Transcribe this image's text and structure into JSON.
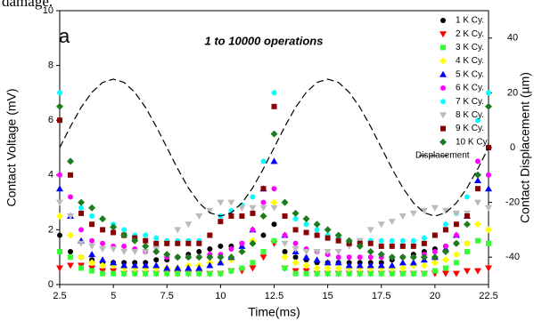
{
  "chart_data": {
    "type": "scatter",
    "header_text": "damage.",
    "panel_label": "a",
    "annotation": "1 to 10000 operations",
    "xlabel": "Time(ms)",
    "ylabel": "Contact Voltage (mV)",
    "y2label": "Contact Displacement (µm)",
    "xlim": [
      2.5,
      22.5
    ],
    "xticks": [
      2.5,
      5.0,
      7.5,
      10.0,
      12.5,
      15.0,
      17.5,
      20.0,
      22.5
    ],
    "ylim": [
      0,
      10
    ],
    "yticks": [
      0,
      2,
      4,
      6,
      8,
      10
    ],
    "y2lim": [
      -50,
      50
    ],
    "y2ticks": [
      -40,
      -20,
      0,
      20,
      40
    ],
    "x": [
      2.5,
      3,
      3.5,
      4,
      4.5,
      5,
      5.5,
      6,
      6.5,
      7,
      7.5,
      8,
      8.5,
      9,
      9.5,
      10,
      10.5,
      11,
      11.5,
      12,
      12.5,
      13,
      13.5,
      14,
      14.5,
      15,
      15.5,
      16,
      16.5,
      17,
      17.5,
      18,
      18.5,
      19,
      19.5,
      20,
      20.5,
      21,
      21.5,
      22,
      22.5
    ],
    "series": [
      {
        "name": "1 K Cy.",
        "color": "#000000",
        "marker": "circle",
        "values": [
          1.8,
          1.2,
          1.0,
          0.9,
          0.8,
          0.8,
          0.8,
          0.8,
          0.8,
          0.9,
          0.9,
          1.0,
          1.1,
          1.2,
          1.3,
          1.4,
          1.4,
          1.5,
          1.5,
          1.8,
          2.2,
          1.2,
          1.0,
          0.9,
          0.8,
          0.8,
          0.8,
          0.8,
          0.8,
          0.8,
          0.8,
          0.9,
          1.0,
          1.1,
          1.2,
          1.3,
          1.4,
          1.5,
          1.5,
          1.6,
          1.5
        ]
      },
      {
        "name": "2 K Cy.",
        "color": "#ff0000",
        "marker": "triangle-down",
        "values": [
          0.6,
          0.7,
          0.7,
          0.6,
          0.5,
          0.5,
          0.4,
          0.4,
          0.4,
          0.4,
          0.4,
          0.4,
          0.4,
          0.4,
          0.4,
          0.4,
          0.5,
          0.5,
          0.6,
          1.0,
          1.5,
          0.6,
          0.5,
          0.5,
          0.4,
          0.4,
          0.4,
          0.4,
          0.4,
          0.4,
          0.4,
          0.4,
          0.4,
          0.4,
          0.4,
          0.4,
          0.4,
          0.4,
          0.5,
          0.5,
          0.6
        ]
      },
      {
        "name": "3 K Cy.",
        "color": "#33ff33",
        "marker": "square",
        "values": [
          1.2,
          1.0,
          0.6,
          0.5,
          0.4,
          0.4,
          0.4,
          0.4,
          0.4,
          0.4,
          0.4,
          0.4,
          0.4,
          0.4,
          0.4,
          0.4,
          0.5,
          0.6,
          0.8,
          1.2,
          1.6,
          0.6,
          0.4,
          0.4,
          0.4,
          0.4,
          0.4,
          0.4,
          0.4,
          0.4,
          0.4,
          0.4,
          0.4,
          0.4,
          0.4,
          0.5,
          0.6,
          0.8,
          1.2,
          1.6,
          1.5
        ]
      },
      {
        "name": "4 K Cy.",
        "color": "#ffff00",
        "marker": "diamond",
        "values": [
          2.5,
          1.8,
          1.0,
          0.8,
          0.7,
          0.7,
          0.6,
          0.6,
          0.6,
          0.6,
          0.6,
          0.6,
          0.7,
          0.7,
          0.8,
          0.8,
          0.9,
          1.2,
          1.6,
          2.5,
          3.0,
          1.0,
          0.8,
          0.7,
          0.6,
          0.6,
          0.6,
          0.6,
          0.6,
          0.6,
          0.6,
          0.6,
          0.6,
          0.7,
          0.7,
          0.8,
          0.9,
          1.1,
          1.5,
          2.2,
          2.0
        ]
      },
      {
        "name": "5 K Cy.",
        "color": "#0000ff",
        "marker": "triangle-up",
        "values": [
          3.5,
          2.5,
          1.6,
          1.1,
          0.9,
          0.8,
          0.7,
          0.7,
          0.7,
          0.7,
          0.6,
          0.6,
          0.6,
          0.6,
          0.7,
          0.8,
          1.0,
          1.4,
          2.0,
          3.5,
          4.5,
          1.8,
          1.2,
          1.0,
          0.9,
          0.8,
          0.8,
          0.7,
          0.7,
          0.7,
          0.7,
          0.7,
          0.8,
          0.8,
          0.9,
          1.0,
          1.3,
          1.8,
          2.5,
          3.8,
          3.5
        ]
      },
      {
        "name": "6 K Cy.",
        "color": "#ff00ff",
        "marker": "circle",
        "values": [
          4.0,
          3.2,
          2.0,
          1.6,
          1.5,
          1.4,
          1.4,
          1.3,
          1.2,
          1.2,
          1.0,
          1.0,
          1.0,
          1.0,
          1.1,
          1.1,
          1.3,
          1.5,
          2.0,
          3.0,
          3.5,
          1.8,
          1.5,
          1.3,
          1.2,
          1.1,
          1.0,
          1.0,
          1.0,
          1.0,
          1.0,
          1.0,
          1.0,
          1.0,
          1.1,
          1.2,
          1.4,
          1.8,
          2.5,
          4.5,
          4.0
        ]
      },
      {
        "name": "7 K Cy.",
        "color": "#00ffff",
        "marker": "circle",
        "values": [
          7.0,
          4.5,
          2.8,
          2.5,
          2.4,
          2.2,
          2.0,
          1.8,
          1.8,
          1.7,
          1.6,
          1.6,
          1.6,
          1.6,
          1.8,
          2.5,
          2.7,
          2.9,
          3.2,
          4.5,
          7.0,
          3.0,
          2.4,
          2.2,
          2.0,
          1.8,
          1.7,
          1.6,
          1.6,
          1.6,
          1.6,
          1.6,
          1.6,
          1.6,
          1.7,
          1.8,
          2.2,
          2.6,
          3.2,
          6.0,
          7.0
        ]
      },
      {
        "name": "8 K Cy.",
        "color": "#bbbbbb",
        "marker": "triangle-down",
        "values": [
          3.0,
          2.5,
          1.5,
          1.4,
          1.3,
          1.3,
          1.2,
          1.2,
          1.2,
          1.3,
          1.5,
          2.0,
          2.2,
          2.5,
          2.7,
          3.0,
          3.0,
          2.8,
          2.8,
          2.8,
          2.8,
          1.5,
          1.3,
          1.2,
          1.2,
          1.2,
          1.2,
          1.4,
          1.6,
          2.0,
          2.2,
          2.3,
          2.5,
          2.6,
          2.7,
          2.8,
          2.7,
          2.6,
          2.6,
          3.0,
          2.8
        ]
      },
      {
        "name": "9 K Cy.",
        "color": "#8b0000",
        "marker": "square",
        "values": [
          6.0,
          4.0,
          2.6,
          2.2,
          2.0,
          1.9,
          1.8,
          1.7,
          1.6,
          1.5,
          1.5,
          1.5,
          1.5,
          1.5,
          1.8,
          2.3,
          2.5,
          2.5,
          2.6,
          3.5,
          6.5,
          2.5,
          2.0,
          1.9,
          1.8,
          1.7,
          1.6,
          1.5,
          1.5,
          1.5,
          1.4,
          1.4,
          1.4,
          1.4,
          1.5,
          1.8,
          2.0,
          2.2,
          2.5,
          3.5,
          5.0
        ]
      },
      {
        "name": "10 K Cy.",
        "color": "#1e7b1e",
        "marker": "diamond",
        "values": [
          6.5,
          4.5,
          3.0,
          2.8,
          2.4,
          2.1,
          1.8,
          1.6,
          1.4,
          1.2,
          1.1,
          1.0,
          1.0,
          1.0,
          1.0,
          1.0,
          1.0,
          1.2,
          1.5,
          2.5,
          5.5,
          3.0,
          2.6,
          2.4,
          2.2,
          2.0,
          1.8,
          1.6,
          1.4,
          1.2,
          1.1,
          1.0,
          1.0,
          1.0,
          1.0,
          1.0,
          1.2,
          1.5,
          2.2,
          4.0,
          6.5
        ]
      },
      {
        "name": "Displacement",
        "color": "#000000",
        "line": "dashed",
        "axis": "y2",
        "values": [
          0,
          7.7,
          14.7,
          20.2,
          23.8,
          25,
          23.8,
          20.2,
          14.7,
          7.7,
          0,
          -7.7,
          -14.7,
          -20.2,
          -23.8,
          -25,
          -23.8,
          -20.2,
          -14.7,
          -7.7,
          0,
          7.7,
          14.7,
          20.2,
          23.8,
          25,
          23.8,
          20.2,
          14.7,
          7.7,
          0,
          -7.7,
          -14.7,
          -20.2,
          -23.8,
          -25,
          -23.8,
          -20.2,
          -14.7,
          -7.7,
          0
        ]
      }
    ]
  }
}
